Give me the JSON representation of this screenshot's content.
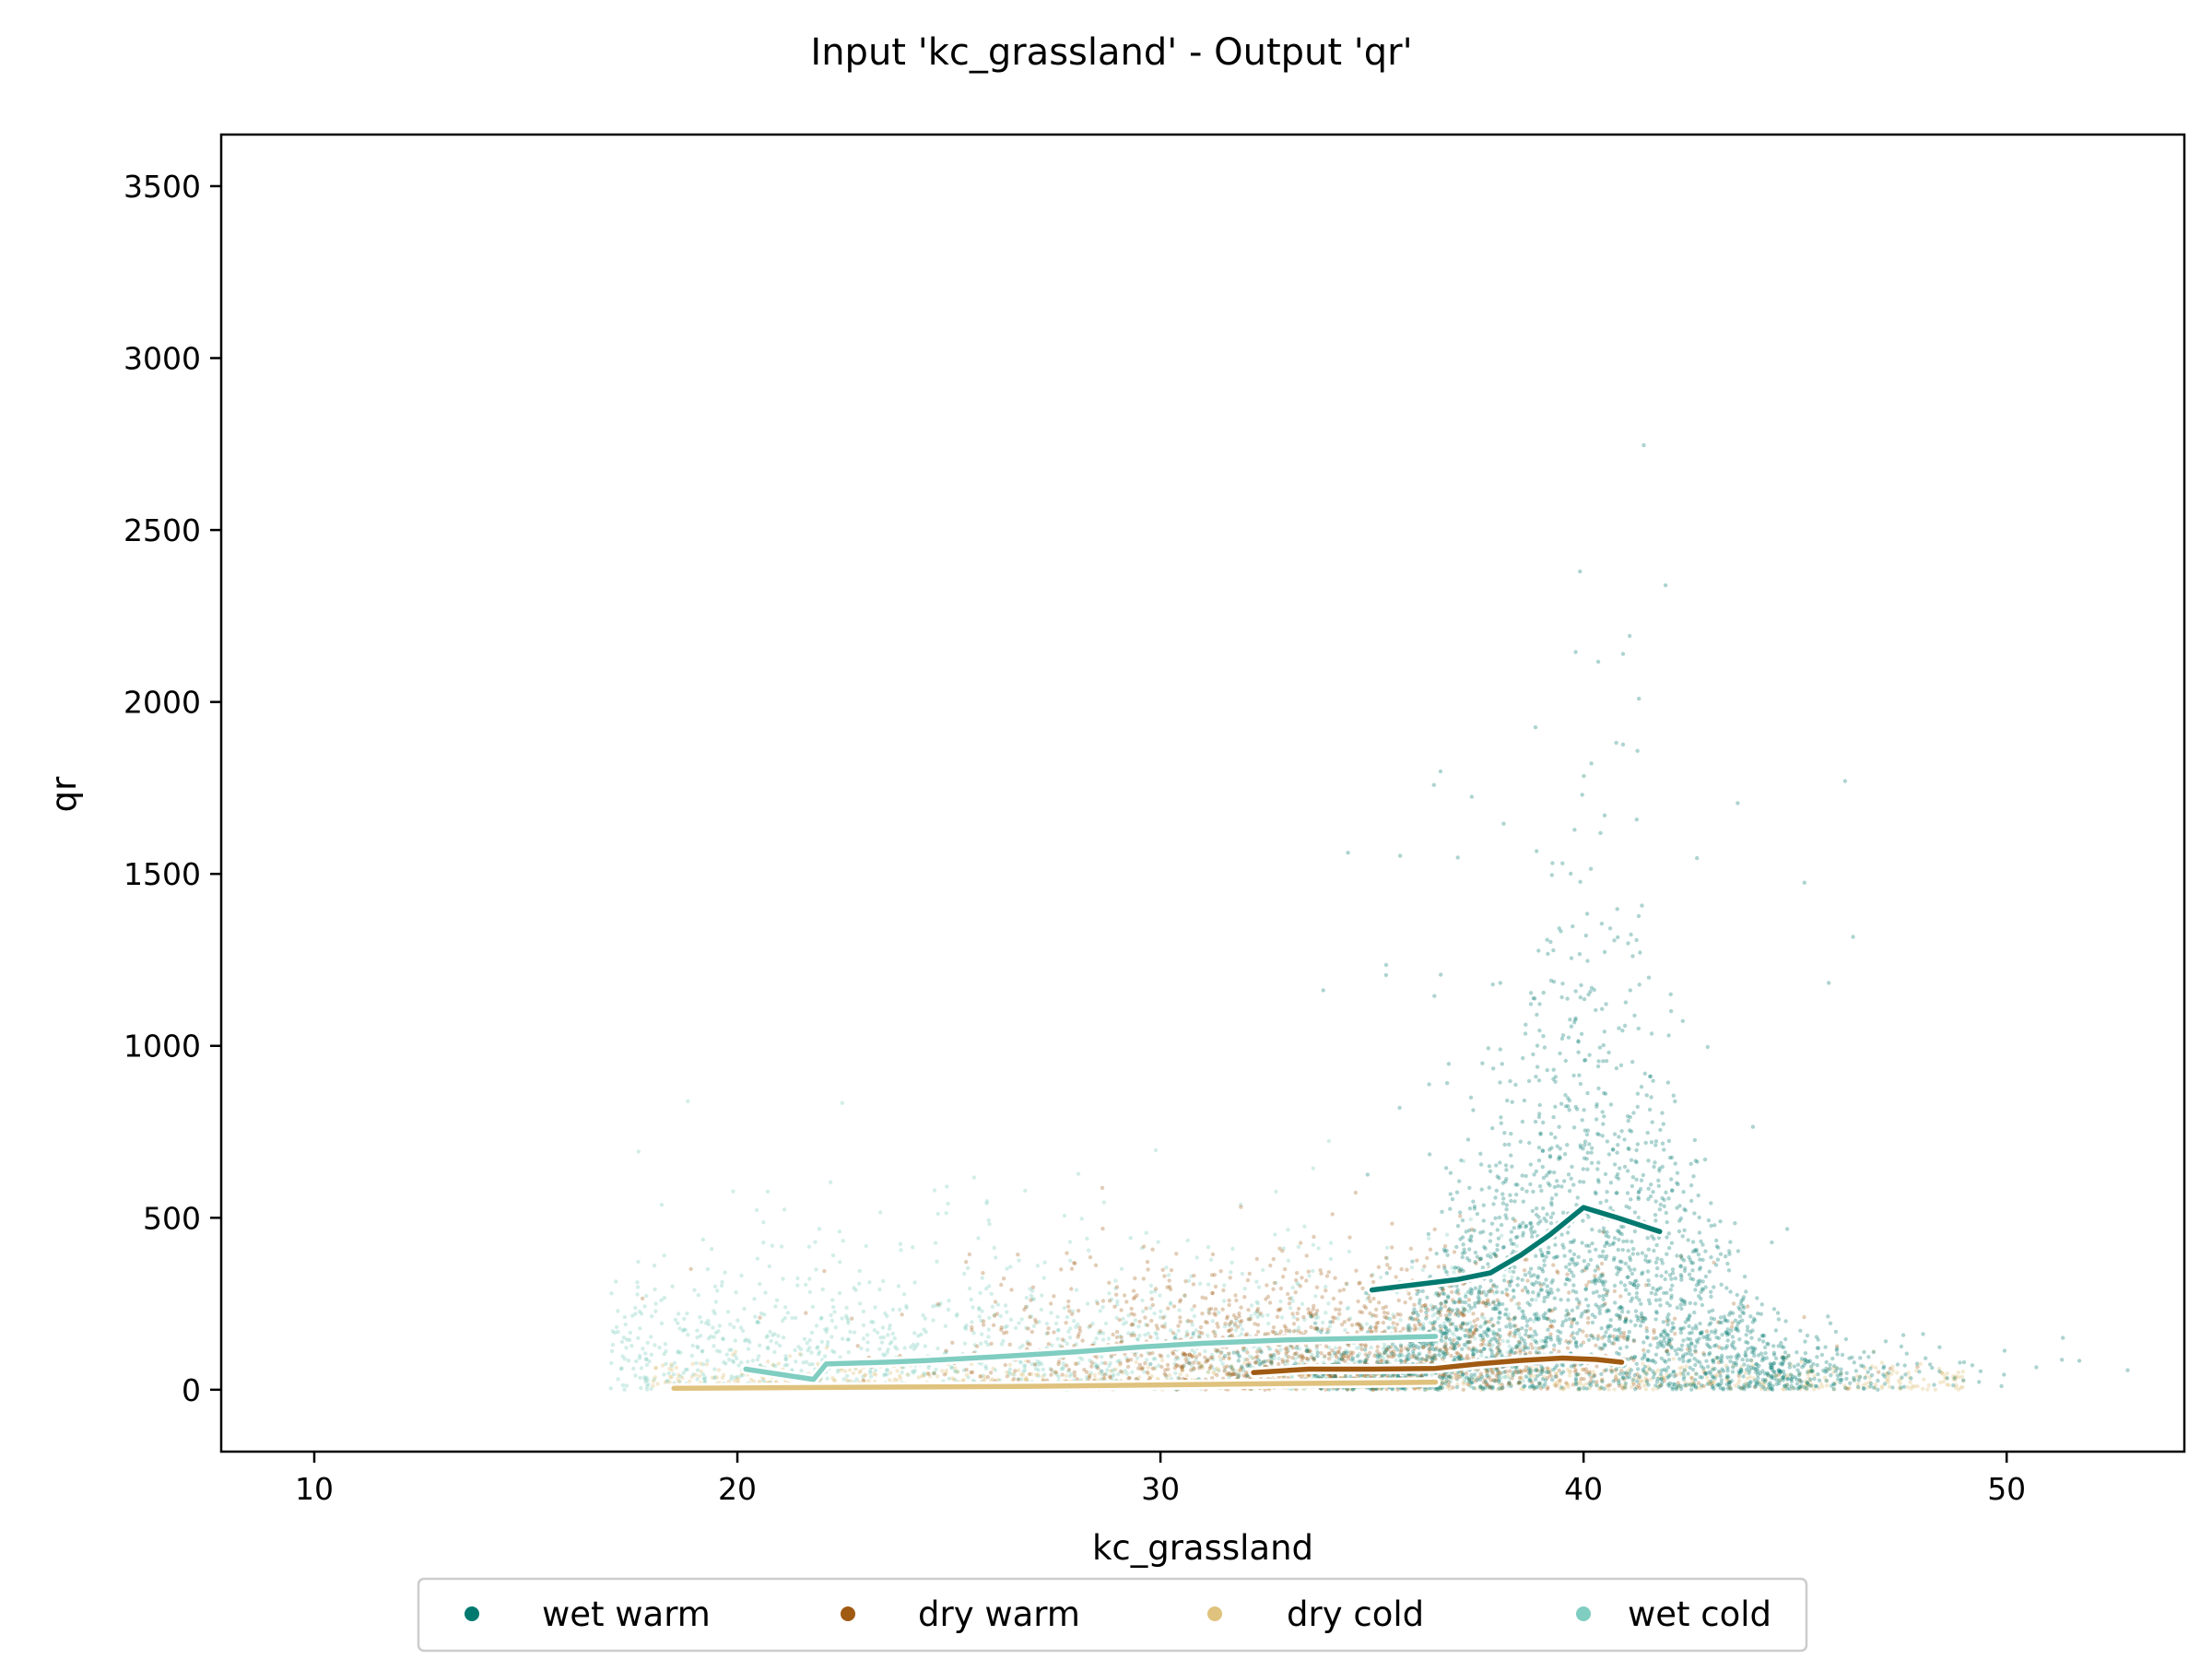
{
  "chart_data": {
    "type": "scatter",
    "title": "Input 'kc_grassland' - Output 'qr'",
    "xlabel": "kc_grassland",
    "ylabel": "qr",
    "xlim": [
      7.8,
      54.2
    ],
    "ylim": [
      -180,
      3650
    ],
    "xticks": [
      10,
      20,
      30,
      40,
      50
    ],
    "yticks": [
      0,
      500,
      1000,
      1500,
      2000,
      2500,
      3000,
      3500
    ],
    "grid": false,
    "legend_position": "bottom-center",
    "series": [
      {
        "name": "wet warm",
        "color": "#01796f",
        "trend": [
          [
            35.0,
            290
          ],
          [
            36.0,
            305
          ],
          [
            37.0,
            320
          ],
          [
            37.8,
            340
          ],
          [
            38.5,
            390
          ],
          [
            39.2,
            450
          ],
          [
            40.0,
            530
          ],
          [
            40.8,
            500
          ],
          [
            41.8,
            460
          ]
        ]
      },
      {
        "name": "dry warm",
        "color": "#a05a12",
        "trend": [
          [
            32.2,
            50
          ],
          [
            33.5,
            60
          ],
          [
            35.0,
            60
          ],
          [
            36.5,
            62
          ],
          [
            37.5,
            75
          ],
          [
            38.5,
            85
          ],
          [
            39.5,
            92
          ],
          [
            40.3,
            88
          ],
          [
            40.9,
            80
          ]
        ]
      },
      {
        "name": "dry cold",
        "color": "#dfc27d",
        "trend": [
          [
            18.5,
            4
          ],
          [
            21.0,
            6
          ],
          [
            24.0,
            8
          ],
          [
            27.0,
            10
          ],
          [
            30.0,
            14
          ],
          [
            33.0,
            18
          ],
          [
            35.0,
            20
          ],
          [
            36.5,
            22
          ]
        ]
      },
      {
        "name": "wet cold",
        "color": "#80cdc1",
        "trend": [
          [
            20.2,
            60
          ],
          [
            21.0,
            45
          ],
          [
            21.8,
            30
          ],
          [
            22.1,
            75
          ],
          [
            23.5,
            80
          ],
          [
            24.5,
            85
          ],
          [
            26.0,
            95
          ],
          [
            28.0,
            110
          ],
          [
            29.6,
            125
          ],
          [
            31.0,
            135
          ],
          [
            33.0,
            145
          ],
          [
            35.0,
            150
          ],
          [
            36.5,
            155
          ]
        ]
      }
    ]
  }
}
